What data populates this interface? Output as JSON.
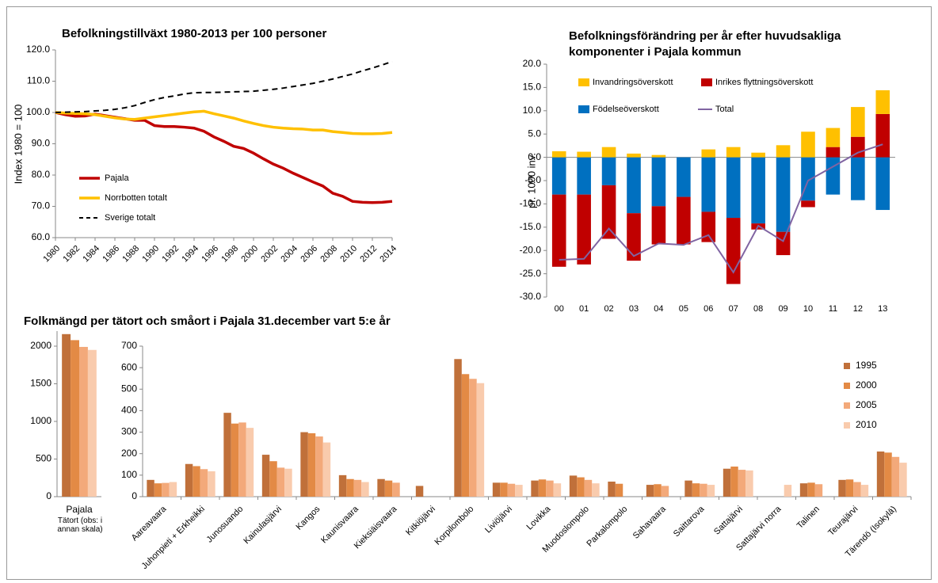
{
  "chart_data": [
    {
      "type": "line",
      "title": "Befolkningstillväxt 1980-2013 per 100 personer",
      "ylabel": "Index 1980 = 100",
      "x": [
        1980,
        1981,
        1982,
        1983,
        1984,
        1985,
        1986,
        1987,
        1988,
        1989,
        1990,
        1991,
        1992,
        1993,
        1994,
        1995,
        1996,
        1997,
        1998,
        1999,
        2000,
        2001,
        2002,
        2003,
        2004,
        2005,
        2006,
        2007,
        2008,
        2009,
        2010,
        2011,
        2012,
        2013,
        2014
      ],
      "xlim": [
        1980,
        2014
      ],
      "xticks": [
        1980,
        1982,
        1984,
        1986,
        1988,
        1990,
        1992,
        1994,
        1996,
        1998,
        2000,
        2002,
        2004,
        2006,
        2008,
        2010,
        2012,
        2014
      ],
      "ylim": [
        60,
        120
      ],
      "yticks": [
        {
          "value": 60,
          "label": "60.0"
        },
        {
          "value": 70,
          "label": "70.0"
        },
        {
          "value": 80,
          "label": "80.0"
        },
        {
          "value": 90,
          "label": "90.0"
        },
        {
          "value": 100,
          "label": "100.0"
        },
        {
          "value": 110,
          "label": "110.0"
        },
        {
          "value": 120,
          "label": "120.0"
        }
      ],
      "grid": false,
      "legend": "lower left",
      "series": [
        {
          "name": "Pajala",
          "color": "#c00000",
          "values": [
            100,
            99.3,
            98.8,
            98.9,
            99.5,
            99,
            98.5,
            98,
            97.5,
            97.5,
            95.8,
            95.5,
            95.5,
            95.3,
            95,
            94,
            92.2,
            90.8,
            89.2,
            88.5,
            87,
            85.2,
            83.5,
            82.2,
            80.6,
            79.2,
            77.8,
            76.5,
            74.2,
            73.2,
            71.6,
            71.3,
            71.2,
            71.3,
            71.6
          ]
        },
        {
          "name": "Norrbotten totalt",
          "color": "#ffc000",
          "values": [
            100,
            99.8,
            99.7,
            99.6,
            99.3,
            98.8,
            98.3,
            97.9,
            97.8,
            98.2,
            98.6,
            99,
            99.4,
            99.8,
            100.2,
            100.4,
            99.6,
            98.9,
            98.2,
            97.3,
            96.5,
            95.8,
            95.3,
            95,
            94.8,
            94.7,
            94.4,
            94.4,
            93.9,
            93.6,
            93.3,
            93.2,
            93.2,
            93.3,
            93.6
          ]
        },
        {
          "name": "Sverige totalt",
          "color": "#000000",
          "dashed": true,
          "values": [
            100,
            100.1,
            100.2,
            100.3,
            100.5,
            100.7,
            101,
            101.5,
            102.2,
            103.2,
            104.1,
            104.8,
            105.3,
            105.9,
            106.3,
            106.4,
            106.4,
            106.5,
            106.6,
            106.7,
            106.8,
            107.1,
            107.4,
            107.8,
            108.3,
            108.8,
            109.3,
            110,
            110.7,
            111.5,
            112.3,
            113.3,
            114.2,
            115.2,
            116.3
          ]
        }
      ]
    },
    {
      "type": "bar",
      "stacked": true,
      "title": [
        "Befolkningsförändring per år efter huvudsakliga",
        "komponenter i Pajala kommun"
      ],
      "ylabel": "pr. 1000 inv.",
      "categories": [
        "00",
        "01",
        "02",
        "03",
        "04",
        "05",
        "06",
        "07",
        "08",
        "09",
        "10",
        "11",
        "12",
        "13"
      ],
      "ylim": [
        -30,
        20
      ],
      "yticks": [
        {
          "value": -30,
          "label": "-30.0"
        },
        {
          "value": -25,
          "label": "-25.0"
        },
        {
          "value": -20,
          "label": "-20.0"
        },
        {
          "value": -15,
          "label": "-15.0"
        },
        {
          "value": -10,
          "label": "-10.0"
        },
        {
          "value": -5,
          "label": "-5.0"
        },
        {
          "value": 0,
          "label": "0.0"
        },
        {
          "value": 5,
          "label": "5.0"
        },
        {
          "value": 10,
          "label": "10.0"
        },
        {
          "value": 15,
          "label": "15.0"
        },
        {
          "value": 20,
          "label": "20.0"
        }
      ],
      "grid": false,
      "legend": "upper left",
      "series": [
        {
          "name": "Födelseöverskott",
          "color": "#0070c0",
          "values": [
            -8,
            -8,
            -6,
            -12,
            -10.5,
            -8.5,
            -11.7,
            -13,
            -14.2,
            -16,
            -9.3,
            -8,
            -9.2,
            -11.3
          ]
        },
        {
          "name": "Inrikes flyttningsöverskott",
          "color": "#c00000",
          "values": [
            -15.5,
            -15,
            -11.5,
            -10.2,
            -8.2,
            -10.2,
            -6.5,
            -14.2,
            -1.3,
            -5,
            -1.4,
            2.2,
            4.4,
            9.3
          ]
        },
        {
          "name": "Invandringsöverskott",
          "color": "#ffc000",
          "values": [
            1.3,
            1.2,
            2.2,
            0.8,
            0.5,
            0,
            1.7,
            2.2,
            1,
            2.6,
            5.5,
            4.1,
            6.4,
            5.1
          ]
        },
        {
          "name": "Total",
          "color": "#8064a2",
          "type": "line",
          "values": [
            -22,
            -21.8,
            -15.3,
            -21.2,
            -18.5,
            -18.8,
            -16.7,
            -24.7,
            -14.7,
            -18,
            -5,
            -2,
            1,
            2.8
          ]
        }
      ]
    },
    {
      "type": "bar",
      "title": "Folkmängd per tätort och småort i Pajala 31.december vart 5:e år",
      "categories": [
        "Pajala"
      ],
      "note": "Tätort (obs: i annan skala)",
      "ylim": [
        0,
        2200
      ],
      "yticks": [
        0,
        500,
        1000,
        1500,
        2000
      ],
      "grid": false,
      "series": [
        {
          "color": "#c0703a",
          "values": [
            2160
          ]
        },
        {
          "color": "#e38a45",
          "values": [
            2080
          ]
        },
        {
          "color": "#f3a97a",
          "values": [
            1990
          ]
        },
        {
          "color": "#f9cbad",
          "values": [
            1950
          ]
        }
      ]
    },
    {
      "type": "bar",
      "categories": [
        "Aareavaara",
        "Juhonpieti + Erkheikki",
        "Junosuando",
        "Kainulasjärvi",
        "Kangos",
        "Kaunisvaara",
        "Kieksiäisvaara",
        "Kitkiöjärvi",
        "Korpilombolo",
        "Liviöjärvi",
        "Lovikka",
        "Muodoslompolo",
        "Parkalompolo",
        "Sahavaara",
        "Saittarova",
        "Sattajärvi",
        "Sattajärvi norra",
        "Talinen",
        "Teurajärvi",
        "Tärendö (Isokylä)"
      ],
      "ylim": [
        0,
        700
      ],
      "yticks": [
        0,
        100,
        200,
        300,
        400,
        500,
        600,
        700
      ],
      "grid": false,
      "legend": "upper right",
      "series": [
        {
          "name": "1995",
          "color": "#c0703a",
          "values": [
            78,
            152,
            390,
            195,
            300,
            100,
            82,
            50,
            640,
            65,
            75,
            98,
            70,
            55,
            75,
            130,
            null,
            62,
            78,
            210
          ]
        },
        {
          "name": "2000",
          "color": "#e38a45",
          "values": [
            62,
            142,
            340,
            165,
            295,
            82,
            75,
            null,
            570,
            65,
            80,
            90,
            60,
            58,
            62,
            140,
            null,
            65,
            80,
            205
          ]
        },
        {
          "name": "2005",
          "color": "#f3a97a",
          "values": [
            64,
            128,
            345,
            135,
            280,
            78,
            65,
            null,
            548,
            60,
            75,
            78,
            null,
            50,
            60,
            125,
            null,
            58,
            68,
            185
          ]
        },
        {
          "name": "2010",
          "color": "#f9cbad",
          "values": [
            68,
            118,
            320,
            130,
            252,
            68,
            null,
            null,
            528,
            55,
            62,
            62,
            null,
            null,
            55,
            122,
            55,
            null,
            55,
            158
          ]
        }
      ]
    }
  ]
}
